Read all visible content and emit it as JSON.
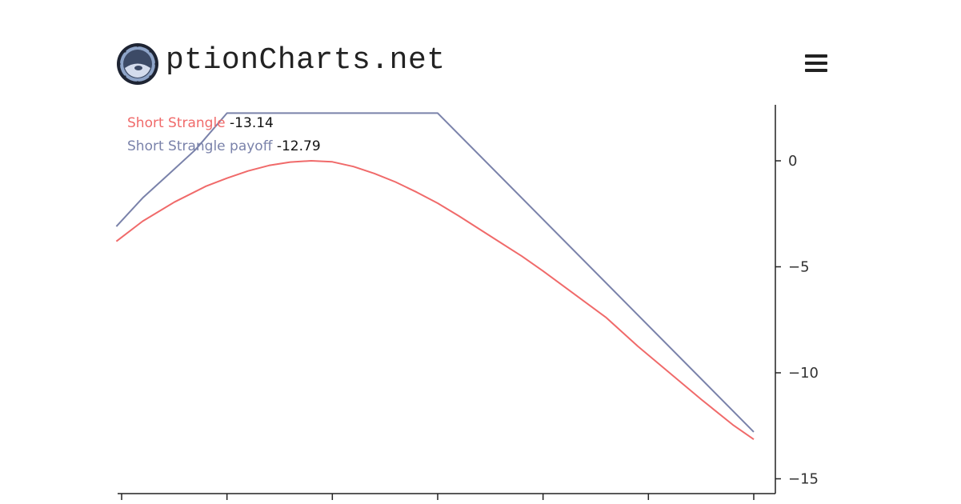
{
  "brand": {
    "text": "ptionCharts.net"
  },
  "chart_data": {
    "type": "line",
    "x_range": [
      0,
      6
    ],
    "ylim": [
      -15.7,
      2.5
    ],
    "y_ticks": [
      0,
      -5,
      -10,
      -15
    ],
    "y_tick_labels": [
      "0",
      "−5",
      "−10",
      "−15"
    ],
    "x_tick_positions": [
      0,
      1,
      2,
      3,
      4,
      5,
      6
    ],
    "series": [
      {
        "name": "Short Strangle",
        "color": "#f06a6a",
        "value": "-13.14",
        "x": [
          -0.05,
          0.2,
          0.5,
          0.8,
          1.0,
          1.2,
          1.4,
          1.6,
          1.8,
          2.0,
          2.2,
          2.4,
          2.6,
          2.8,
          3.0,
          3.2,
          3.5,
          3.8,
          4.0,
          4.3,
          4.6,
          4.9,
          5.2,
          5.5,
          5.8,
          6.0
        ],
        "y": [
          -3.8,
          -2.85,
          -1.95,
          -1.2,
          -0.82,
          -0.48,
          -0.22,
          -0.06,
          0.0,
          -0.05,
          -0.27,
          -0.6,
          -1.0,
          -1.48,
          -2.0,
          -2.6,
          -3.55,
          -4.5,
          -5.2,
          -6.3,
          -7.4,
          -8.75,
          -10.0,
          -11.25,
          -12.45,
          -13.14
        ]
      },
      {
        "name": "Short Strangle payoff",
        "color": "#7a82aa",
        "value": "-12.79",
        "x": [
          -0.05,
          0.2,
          0.45,
          0.7,
          1.0,
          3.0,
          6.0
        ],
        "y": [
          -3.1,
          -1.75,
          -0.62,
          0.52,
          2.25,
          2.25,
          -12.79
        ]
      }
    ]
  }
}
